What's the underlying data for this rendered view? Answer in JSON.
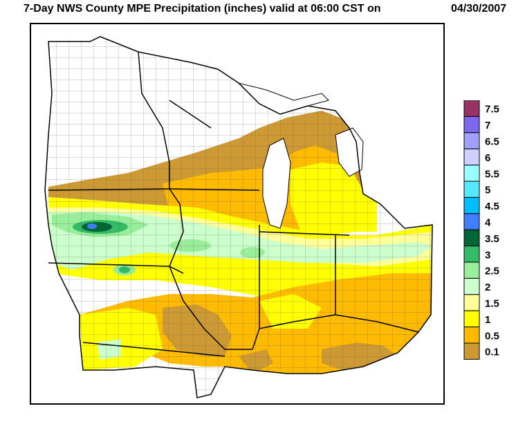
{
  "header": {
    "title": "7-Day NWS County MPE Precipitation (inches) valid at 06:00 CST on",
    "date": "04/30/2007"
  },
  "legend": {
    "items": [
      {
        "label": "7.5",
        "color": "#993366"
      },
      {
        "label": "7",
        "color": "#7b68ee"
      },
      {
        "label": "6.5",
        "color": "#a0a0ff"
      },
      {
        "label": "6",
        "color": "#d0d0ff"
      },
      {
        "label": "5.5",
        "color": "#99ffff"
      },
      {
        "label": "5",
        "color": "#55e8ff"
      },
      {
        "label": "4.5",
        "color": "#00bfff"
      },
      {
        "label": "4",
        "color": "#3f7fff"
      },
      {
        "label": "3.5",
        "color": "#006633"
      },
      {
        "label": "3",
        "color": "#33bb66"
      },
      {
        "label": "2.5",
        "color": "#99ee99"
      },
      {
        "label": "2",
        "color": "#ccffcc"
      },
      {
        "label": "1.5",
        "color": "#ffff99"
      },
      {
        "label": "1",
        "color": "#ffff00"
      },
      {
        "label": "0.5",
        "color": "#ffbb00"
      },
      {
        "label": "0.1",
        "color": "#cc9933"
      }
    ]
  }
}
